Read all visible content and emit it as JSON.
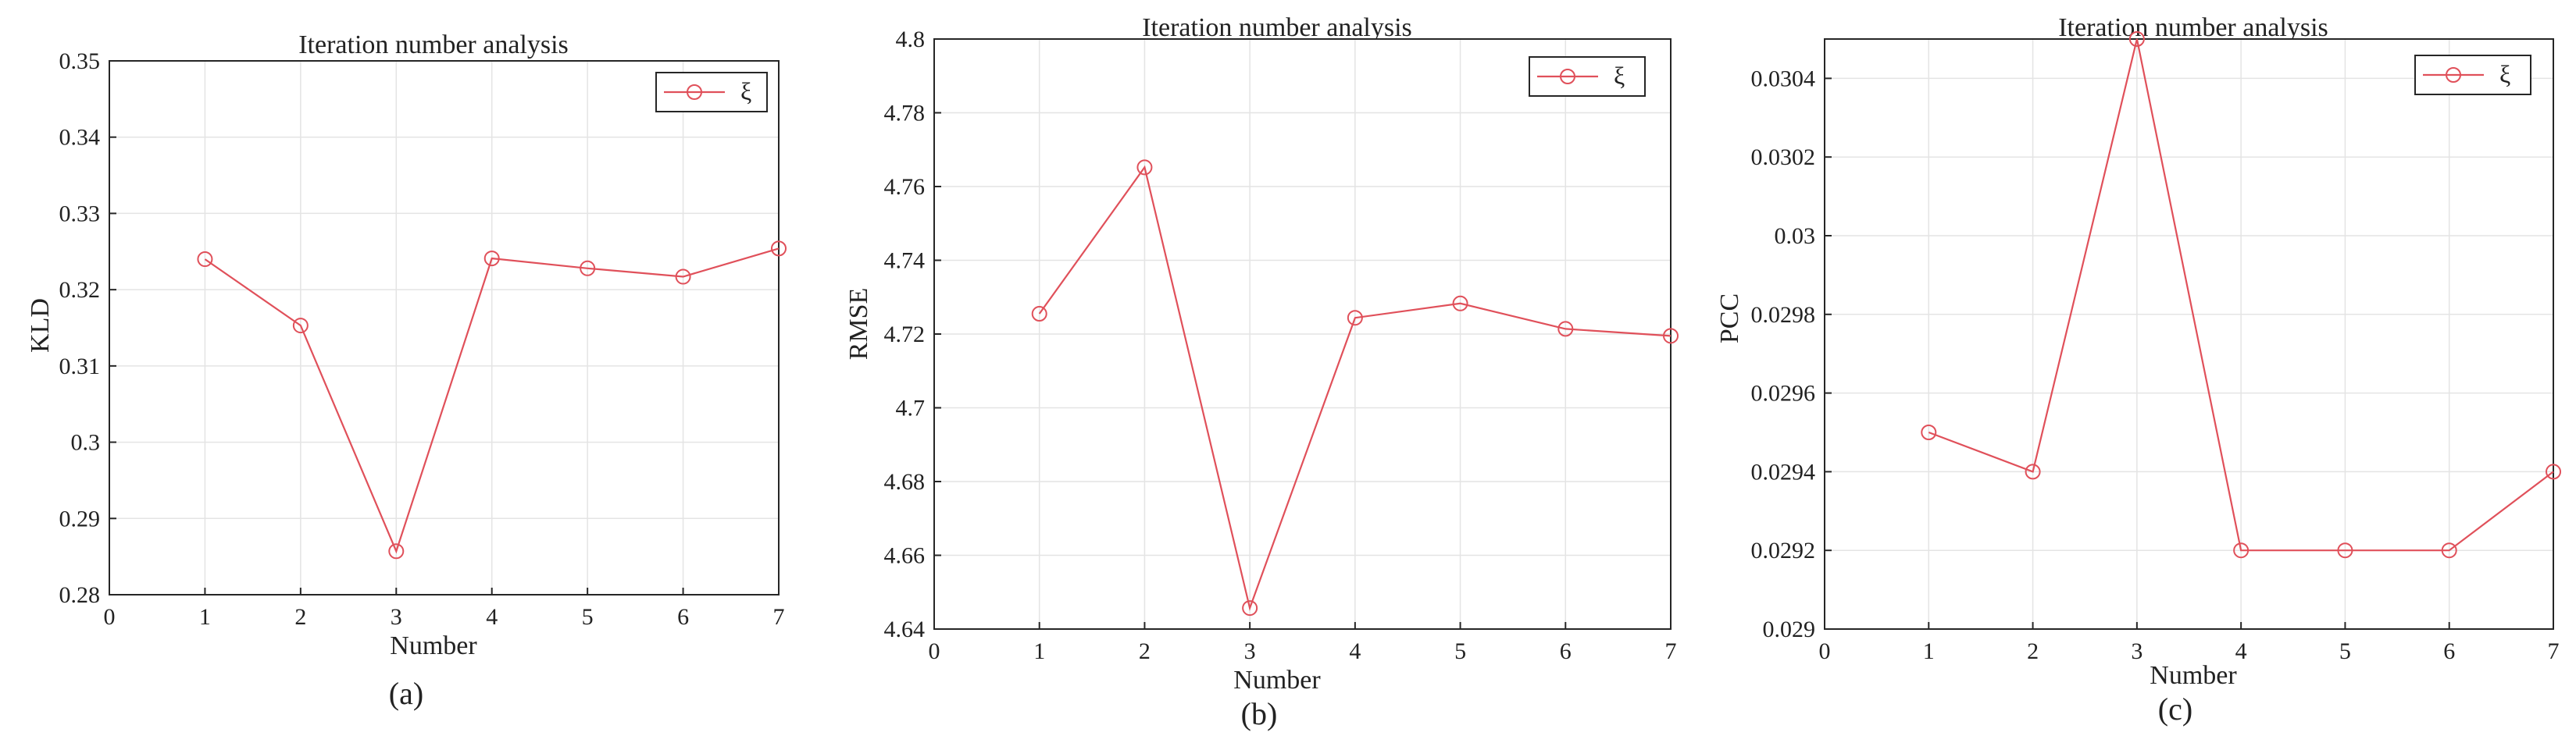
{
  "chart_data": [
    {
      "type": "line",
      "title": "Iteration number analysis",
      "xlabel": "Number",
      "ylabel": "KLD",
      "caption": "(a)",
      "xlim": [
        0,
        7
      ],
      "ylim": [
        0.28,
        0.35
      ],
      "xticks": [
        "0",
        "1",
        "2",
        "3",
        "4",
        "5",
        "6",
        "7"
      ],
      "yticks": [
        "0.28",
        "0.29",
        "0.3",
        "0.31",
        "0.32",
        "0.33",
        "0.34",
        "0.35"
      ],
      "grid": true,
      "legend": "top-right",
      "series": [
        {
          "name": "ξ",
          "color": "#e0505a",
          "marker": "circle",
          "x": [
            1,
            2,
            3,
            4,
            5,
            6,
            7
          ],
          "values": [
            0.324,
            0.3153,
            0.2857,
            0.3241,
            0.3228,
            0.3217,
            0.3254
          ]
        }
      ]
    },
    {
      "type": "line",
      "title": "Iteration number analysis",
      "xlabel": "Number",
      "ylabel": "RMSE",
      "caption": "(b)",
      "xlim": [
        0,
        7
      ],
      "ylim": [
        4.64,
        4.8
      ],
      "xticks": [
        "0",
        "1",
        "2",
        "3",
        "4",
        "5",
        "6",
        "7"
      ],
      "yticks": [
        "4.64",
        "4.66",
        "4.68",
        "4.7",
        "4.72",
        "4.74",
        "4.76",
        "4.78",
        "4.8"
      ],
      "grid": true,
      "legend": "top-right",
      "series": [
        {
          "name": "ξ",
          "color": "#e0505a",
          "marker": "circle",
          "x": [
            1,
            2,
            3,
            4,
            5,
            6,
            7
          ],
          "values": [
            4.7255,
            4.7652,
            4.6457,
            4.7244,
            4.7283,
            4.7214,
            4.7195
          ]
        }
      ]
    },
    {
      "type": "line",
      "title": "Iteration number analysis",
      "xlabel": "Number",
      "ylabel": "PCC",
      "caption": "(c)",
      "xlim": [
        0,
        7
      ],
      "ylim": [
        0.029,
        0.0305
      ],
      "xticks": [
        "0",
        "1",
        "2",
        "3",
        "4",
        "5",
        "6",
        "7"
      ],
      "yticks": [
        "0.029",
        "0.0292",
        "0.0294",
        "0.0296",
        "0.0298",
        "0.03",
        "0.0302",
        "0.0304"
      ],
      "grid": true,
      "legend": "top-right",
      "series": [
        {
          "name": "ξ",
          "color": "#e0505a",
          "marker": "circle",
          "x": [
            1,
            2,
            3,
            4,
            5,
            6,
            7
          ],
          "values": [
            0.0295,
            0.0294,
            0.0305,
            0.0292,
            0.0292,
            0.0292,
            0.0294
          ]
        }
      ]
    }
  ]
}
